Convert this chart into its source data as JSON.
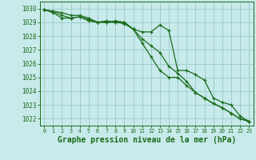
{
  "background_color": "#c8eaea",
  "grid_color": "#9ecece",
  "line_color": "#1a6b1a",
  "title": "Graphe pression niveau de la mer (hPa)",
  "xlim": [
    -0.5,
    23.5
  ],
  "ylim": [
    1021.5,
    1030.5
  ],
  "yticks": [
    1022,
    1023,
    1024,
    1025,
    1026,
    1027,
    1028,
    1029,
    1030
  ],
  "xticks": [
    0,
    1,
    2,
    3,
    4,
    5,
    6,
    7,
    8,
    9,
    10,
    11,
    12,
    13,
    14,
    15,
    16,
    17,
    18,
    19,
    20,
    21,
    22,
    23
  ],
  "series1": [
    1029.9,
    1029.8,
    1029.7,
    1029.5,
    1029.5,
    1029.3,
    1029.0,
    1029.0,
    1029.1,
    1029.0,
    1028.5,
    1028.3,
    1028.3,
    1028.8,
    1028.4,
    1025.5,
    1025.5,
    1025.2,
    1024.8,
    1023.5,
    1023.2,
    1023.0,
    1022.2,
    1021.8
  ],
  "series2": [
    1029.9,
    1029.7,
    1029.3,
    1029.3,
    1029.4,
    1029.1,
    1029.0,
    1029.0,
    1029.0,
    1029.0,
    1028.5,
    1027.8,
    1027.3,
    1026.8,
    1025.8,
    1025.3,
    1024.7,
    1023.9,
    1023.5,
    1023.1,
    1022.8,
    1022.4,
    1022.0,
    1021.8
  ],
  "series3": [
    1029.9,
    1029.8,
    1029.5,
    1029.3,
    1029.4,
    1029.2,
    1029.0,
    1029.1,
    1029.0,
    1028.9,
    1028.5,
    1027.5,
    1026.5,
    1025.5,
    1025.0,
    1025.0,
    1024.4,
    1023.9,
    1023.5,
    1023.1,
    1022.8,
    1022.4,
    1022.0,
    1021.8
  ]
}
